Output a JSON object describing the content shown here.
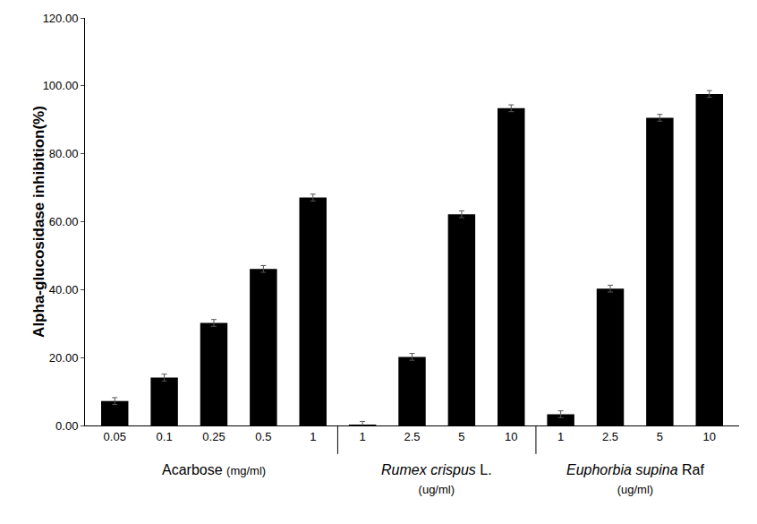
{
  "chart_data": {
    "type": "bar",
    "y_label": "Alpha-glucosidase inhibition(%)",
    "color": "#000000",
    "ylim": [
      0,
      120
    ],
    "yticks": [
      {
        "value": 0,
        "label": "0.00"
      },
      {
        "value": 20,
        "label": "20.00"
      },
      {
        "value": 40,
        "label": "40.00"
      },
      {
        "value": 60,
        "label": "60.00"
      },
      {
        "value": 80,
        "label": "80.00"
      },
      {
        "value": 100,
        "label": "100.00"
      },
      {
        "value": 120,
        "label": "120.00"
      }
    ],
    "grid": false,
    "groups": [
      {
        "name": "Acarbose",
        "unit": "(mg/ml)",
        "categories": [
          "0.05",
          "0.1",
          "0.25",
          "0.5",
          "1"
        ],
        "values": [
          7.2,
          14.1,
          30.2,
          46.1,
          67.1
        ],
        "errors": [
          1.0,
          1.0,
          1.0,
          1.0,
          1.0
        ]
      },
      {
        "name": "Rumex crispus",
        "authority": "L.",
        "unit": "(ug/ml)",
        "categories": [
          "1",
          "2.5",
          "5",
          "10"
        ],
        "values": [
          0.2,
          20.2,
          62.2,
          93.4
        ],
        "errors": [
          1.0,
          1.0,
          1.0,
          1.0
        ]
      },
      {
        "name": "Euphorbia supina",
        "authority": "Raf",
        "unit": "(ug/ml)",
        "categories": [
          "1",
          "2.5",
          "5",
          "10"
        ],
        "values": [
          3.3,
          40.3,
          90.6,
          97.6
        ],
        "errors": [
          1.0,
          1.0,
          1.0,
          1.0
        ]
      }
    ]
  }
}
